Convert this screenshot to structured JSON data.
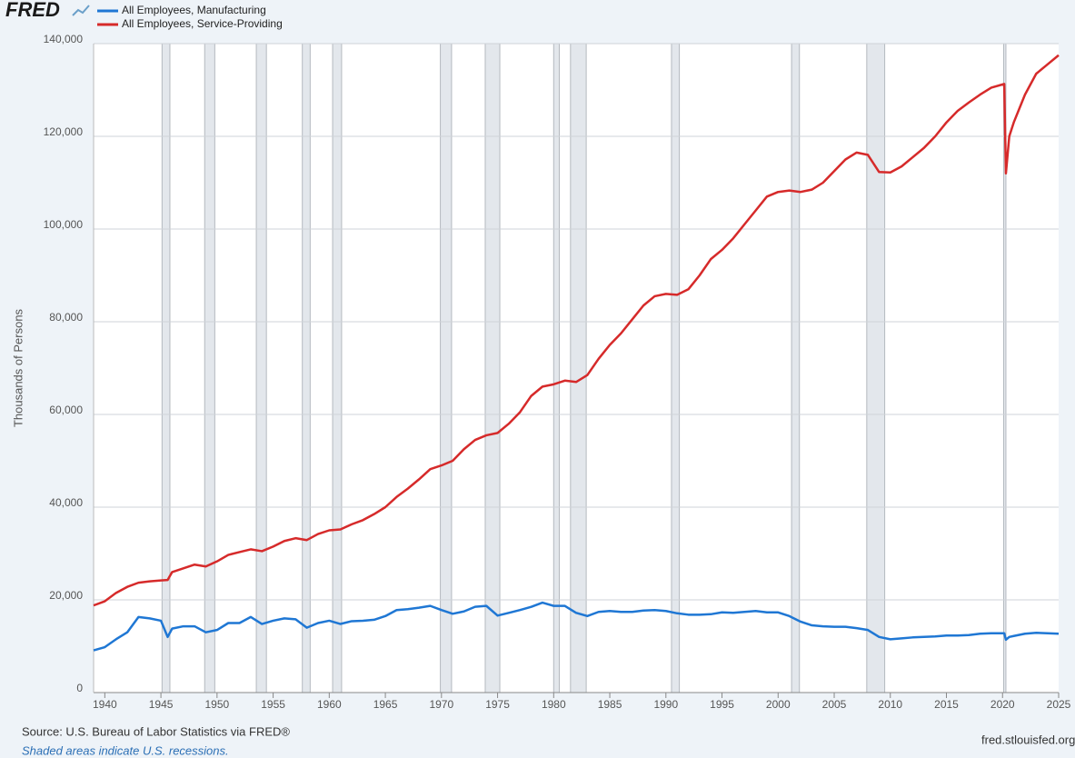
{
  "chart_data": {
    "type": "line",
    "logo": "FRED",
    "y_label": "Thousands of Persons",
    "source": "Source: U.S. Bureau of Labor Statistics via FRED®",
    "note": "Shaded areas indicate U.S. recessions.",
    "credit": "fred.stlouisfed.org",
    "grid": true,
    "xlim": [
      1939,
      2025
    ],
    "xticks": [
      1940,
      1945,
      1950,
      1955,
      1960,
      1965,
      1970,
      1975,
      1980,
      1985,
      1990,
      1995,
      2000,
      2005,
      2010,
      2015,
      2020,
      2025
    ],
    "ylim": [
      0,
      140000
    ],
    "yticks": [
      0,
      {
        "value": 20000,
        "label": "20,000"
      },
      {
        "value": 40000,
        "label": "40,000"
      },
      {
        "value": 60000,
        "label": "60,000"
      },
      {
        "value": 80000,
        "label": "80,000"
      },
      {
        "value": 100000,
        "label": "100,000"
      },
      {
        "value": 120000,
        "label": "120,000"
      },
      {
        "value": 140000,
        "label": "140,000"
      }
    ],
    "recessions": [
      [
        1945.1,
        1945.8
      ],
      [
        1948.9,
        1949.8
      ],
      [
        1953.5,
        1954.4
      ],
      [
        1957.6,
        1958.3
      ],
      [
        1960.3,
        1961.1
      ],
      [
        1969.9,
        1970.9
      ],
      [
        1973.9,
        1975.2
      ],
      [
        1980.0,
        1980.5
      ],
      [
        1981.5,
        1982.9
      ],
      [
        1990.5,
        1991.2
      ],
      [
        2001.2,
        2001.9
      ],
      [
        2007.9,
        2009.5
      ],
      [
        2020.1,
        2020.3
      ]
    ],
    "x": [
      1939,
      1940,
      1941,
      1942,
      1943,
      1944,
      1945,
      1945.6,
      1946,
      1947,
      1948,
      1949,
      1950,
      1951,
      1952,
      1953,
      1954,
      1955,
      1956,
      1957,
      1958,
      1959,
      1960,
      1961,
      1962,
      1963,
      1964,
      1965,
      1966,
      1967,
      1968,
      1969,
      1970,
      1971,
      1972,
      1973,
      1974,
      1975,
      1976,
      1977,
      1978,
      1979,
      1980,
      1981,
      1982,
      1983,
      1984,
      1985,
      1986,
      1987,
      1988,
      1989,
      1990,
      1991,
      1992,
      1993,
      1994,
      1995,
      1996,
      1997,
      1998,
      1999,
      2000,
      2001,
      2002,
      2003,
      2004,
      2005,
      2006,
      2007,
      2008,
      2009,
      2010,
      2011,
      2012,
      2013,
      2014,
      2015,
      2016,
      2017,
      2018,
      2019,
      2020.15,
      2020.3,
      2020.6,
      2021,
      2022,
      2023,
      2024,
      2025
    ],
    "series": [
      {
        "name": "All Employees, Manufacturing",
        "color": "#1f77d4",
        "values": [
          9100,
          9800,
          11500,
          13000,
          16300,
          16000,
          15500,
          12000,
          13800,
          14300,
          14300,
          13000,
          13500,
          15000,
          15000,
          16300,
          14800,
          15500,
          16000,
          15800,
          14000,
          15000,
          15500,
          14800,
          15400,
          15500,
          15700,
          16500,
          17800,
          18000,
          18300,
          18700,
          17800,
          17000,
          17500,
          18500,
          18700,
          16600,
          17200,
          17800,
          18500,
          19400,
          18700,
          18700,
          17200,
          16500,
          17400,
          17600,
          17400,
          17400,
          17700,
          17800,
          17600,
          17100,
          16800,
          16800,
          16900,
          17300,
          17200,
          17400,
          17600,
          17300,
          17300,
          16500,
          15300,
          14500,
          14300,
          14200,
          14200,
          13900,
          13500,
          12000,
          11500,
          11700,
          11900,
          12000,
          12100,
          12300,
          12300,
          12400,
          12700,
          12800,
          12800,
          11400,
          12000,
          12200,
          12700,
          12900,
          12800,
          12700
        ]
      },
      {
        "name": "All Employees, Service-Providing",
        "color": "#d62a2a",
        "values": [
          18800,
          19700,
          21500,
          22800,
          23700,
          24000,
          24200,
          24300,
          26000,
          26800,
          27600,
          27200,
          28300,
          29700,
          30300,
          30900,
          30500,
          31500,
          32700,
          33300,
          32900,
          34200,
          35000,
          35200,
          36300,
          37200,
          38500,
          40000,
          42200,
          44000,
          46000,
          48200,
          49000,
          50000,
          52500,
          54500,
          55500,
          56000,
          58000,
          60500,
          64000,
          66000,
          66500,
          67300,
          67000,
          68500,
          72000,
          75000,
          77500,
          80500,
          83500,
          85500,
          86000,
          85800,
          87000,
          90000,
          93500,
          95500,
          98000,
          101000,
          104000,
          107000,
          108000,
          108300,
          108000,
          108500,
          110000,
          112500,
          115000,
          116500,
          116000,
          112300,
          112200,
          113500,
          115500,
          117500,
          120000,
          123000,
          125500,
          127300,
          129000,
          130500,
          131300,
          112000,
          120000,
          123000,
          129000,
          133500,
          135500,
          137500
        ]
      }
    ]
  }
}
